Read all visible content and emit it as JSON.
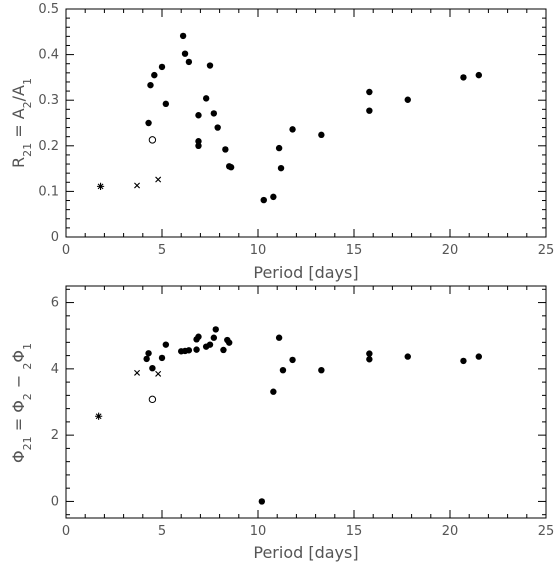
{
  "chart_data": [
    {
      "type": "scatter",
      "xlabel": "Period [days]",
      "ylabel": "R21 = A2/A1",
      "xlim": [
        0,
        25
      ],
      "ylim": [
        0,
        0.5
      ],
      "x_ticks": [
        0,
        5,
        10,
        15,
        20,
        25
      ],
      "y_ticks": [
        0,
        0.1,
        0.2,
        0.3,
        0.4,
        0.5
      ],
      "y_tick_labels": [
        "0",
        "0.1",
        "0.2",
        "0.3",
        "0.4",
        "0.5"
      ],
      "grid": false,
      "series": [
        {
          "marker": "filled-circle",
          "points": [
            [
              4.3,
              0.25
            ],
            [
              4.4,
              0.333
            ],
            [
              4.6,
              0.355
            ],
            [
              5.0,
              0.373
            ],
            [
              5.2,
              0.292
            ],
            [
              6.1,
              0.441
            ],
            [
              6.2,
              0.402
            ],
            [
              6.4,
              0.384
            ],
            [
              6.9,
              0.267
            ],
            [
              6.9,
              0.21
            ],
            [
              6.9,
              0.2
            ],
            [
              7.3,
              0.304
            ],
            [
              7.5,
              0.376
            ],
            [
              7.7,
              0.271
            ],
            [
              7.9,
              0.24
            ],
            [
              8.3,
              0.192
            ],
            [
              8.5,
              0.155
            ],
            [
              8.6,
              0.153
            ],
            [
              10.3,
              0.081
            ],
            [
              10.8,
              0.088
            ],
            [
              11.1,
              0.195
            ],
            [
              11.2,
              0.151
            ],
            [
              11.8,
              0.236
            ],
            [
              13.3,
              0.224
            ],
            [
              15.8,
              0.318
            ],
            [
              15.8,
              0.277
            ],
            [
              17.8,
              0.301
            ],
            [
              20.7,
              0.35
            ],
            [
              21.5,
              0.355
            ]
          ]
        },
        {
          "marker": "open-circle",
          "points": [
            [
              4.5,
              0.213
            ]
          ]
        },
        {
          "marker": "cross",
          "points": [
            [
              3.7,
              0.113
            ],
            [
              4.8,
              0.126
            ]
          ]
        },
        {
          "marker": "asterisk",
          "points": [
            [
              1.8,
              0.111
            ]
          ]
        }
      ]
    },
    {
      "type": "scatter",
      "xlabel": "Period [days]",
      "ylabel": "Φ21 = Φ2 − 2Φ1",
      "xlim": [
        0,
        25
      ],
      "ylim": [
        -0.5,
        6.5
      ],
      "x_ticks": [
        0,
        5,
        10,
        15,
        20,
        25
      ],
      "y_ticks": [
        0,
        2,
        4,
        6
      ],
      "y_tick_labels": [
        "0",
        "2",
        "4",
        "6"
      ],
      "grid": false,
      "series": [
        {
          "marker": "filled-circle",
          "points": [
            [
              4.2,
              4.3
            ],
            [
              4.3,
              4.47
            ],
            [
              4.5,
              4.02
            ],
            [
              5.0,
              4.33
            ],
            [
              5.2,
              4.73
            ],
            [
              6.0,
              4.53
            ],
            [
              6.2,
              4.54
            ],
            [
              6.4,
              4.56
            ],
            [
              6.8,
              4.58
            ],
            [
              6.8,
              4.89
            ],
            [
              6.9,
              4.97
            ],
            [
              7.3,
              4.67
            ],
            [
              7.5,
              4.73
            ],
            [
              7.7,
              4.94
            ],
            [
              7.8,
              5.19
            ],
            [
              8.2,
              4.57
            ],
            [
              8.4,
              4.87
            ],
            [
              8.5,
              4.79
            ],
            [
              10.2,
              0.0
            ],
            [
              10.8,
              3.31
            ],
            [
              11.1,
              4.94
            ],
            [
              11.3,
              3.96
            ],
            [
              11.8,
              4.27
            ],
            [
              13.3,
              3.96
            ],
            [
              15.8,
              4.46
            ],
            [
              15.8,
              4.29
            ],
            [
              17.8,
              4.37
            ],
            [
              20.7,
              4.24
            ],
            [
              21.5,
              4.37
            ]
          ]
        },
        {
          "marker": "open-circle",
          "points": [
            [
              4.5,
              3.08
            ]
          ]
        },
        {
          "marker": "cross",
          "points": [
            [
              3.7,
              3.88
            ],
            [
              4.8,
              3.85
            ]
          ]
        },
        {
          "marker": "asterisk",
          "points": [
            [
              1.7,
              2.57
            ]
          ]
        }
      ]
    }
  ]
}
